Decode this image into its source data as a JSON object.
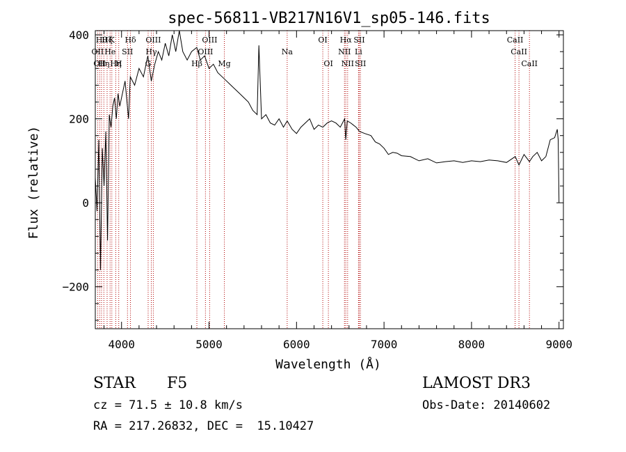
{
  "chart_data": {
    "type": "line",
    "title": "spec-56811-VB217N16V1_sp05-146.fits",
    "xlabel": "Wavelength (Å)",
    "ylabel": "Flux (relative)",
    "xlim": [
      3700,
      9050
    ],
    "ylim": [
      -300,
      410
    ],
    "xticks": [
      4000,
      5000,
      6000,
      7000,
      8000,
      9000
    ],
    "yticks": [
      -200,
      0,
      200,
      400
    ],
    "grid": false,
    "series": [
      {
        "name": "flux",
        "x": [
          3700,
          3720,
          3740,
          3760,
          3780,
          3800,
          3820,
          3840,
          3860,
          3880,
          3900,
          3920,
          3940,
          3960,
          3980,
          4000,
          4040,
          4080,
          4100,
          4150,
          4200,
          4250,
          4300,
          4340,
          4380,
          4420,
          4460,
          4500,
          4540,
          4580,
          4620,
          4660,
          4700,
          4750,
          4800,
          4860,
          4900,
          4950,
          5000,
          5050,
          5100,
          5150,
          5200,
          5250,
          5300,
          5350,
          5400,
          5450,
          5500,
          5550,
          5570,
          5600,
          5650,
          5700,
          5750,
          5800,
          5850,
          5893,
          5950,
          6000,
          6050,
          6100,
          6150,
          6200,
          6250,
          6300,
          6350,
          6400,
          6450,
          6500,
          6550,
          6563,
          6580,
          6620,
          6680,
          6720,
          6780,
          6850,
          6900,
          6950,
          7000,
          7050,
          7100,
          7150,
          7200,
          7300,
          7400,
          7500,
          7600,
          7700,
          7800,
          7900,
          8000,
          8100,
          8200,
          8300,
          8400,
          8500,
          8542,
          8600,
          8662,
          8700,
          8750,
          8800,
          8850,
          8900,
          8950,
          8980,
          8990,
          9000
        ],
        "y": [
          60,
          -20,
          150,
          -160,
          130,
          40,
          170,
          -90,
          210,
          180,
          230,
          250,
          200,
          260,
          230,
          250,
          290,
          200,
          300,
          280,
          320,
          300,
          350,
          290,
          330,
          360,
          340,
          380,
          350,
          400,
          360,
          410,
          360,
          340,
          360,
          370,
          340,
          350,
          320,
          330,
          310,
          300,
          290,
          280,
          270,
          260,
          250,
          240,
          220,
          210,
          375,
          200,
          210,
          190,
          185,
          200,
          180,
          195,
          175,
          165,
          180,
          190,
          200,
          175,
          185,
          180,
          190,
          195,
          190,
          180,
          200,
          150,
          195,
          190,
          180,
          170,
          165,
          160,
          145,
          140,
          130,
          115,
          120,
          118,
          112,
          110,
          100,
          105,
          95,
          98,
          100,
          96,
          100,
          98,
          102,
          100,
          96,
          110,
          90,
          115,
          98,
          110,
          120,
          100,
          110,
          150,
          155,
          175,
          150,
          0
        ]
      }
    ],
    "lines": [
      {
        "wl": 3727,
        "label": "OII",
        "row": 1
      },
      {
        "wl": 3750,
        "label": "OII",
        "row": 2
      },
      {
        "wl": 3771,
        "label": "Hθ",
        "row": 0
      },
      {
        "wl": 3798,
        "label": "Hη",
        "row": 2
      },
      {
        "wl": 3835,
        "label": "Hζ",
        "row": 0
      },
      {
        "wl": 3869,
        "label": "He",
        "row": 1
      },
      {
        "wl": 3889,
        "label": "K",
        "row": 0
      },
      {
        "wl": 3934,
        "label": "Hη",
        "row": 2
      },
      {
        "wl": 3968,
        "label": "H",
        "row": 2
      },
      {
        "wl": 4068,
        "label": "SII",
        "row": 1
      },
      {
        "wl": 4102,
        "label": "Hδ",
        "row": 0
      },
      {
        "wl": 4304,
        "label": "G",
        "row": 2
      },
      {
        "wl": 4340,
        "label": "Hγ",
        "row": 1
      },
      {
        "wl": 4363,
        "label": "OIII",
        "row": 0
      },
      {
        "wl": 4861,
        "label": "Hβ",
        "row": 2
      },
      {
        "wl": 4959,
        "label": "OIII",
        "row": 1
      },
      {
        "wl": 5007,
        "label": "OIII",
        "row": 0
      },
      {
        "wl": 5175,
        "label": "Mg",
        "row": 2
      },
      {
        "wl": 5893,
        "label": "Na",
        "row": 1
      },
      {
        "wl": 6300,
        "label": "OI",
        "row": 0
      },
      {
        "wl": 6364,
        "label": "OI",
        "row": 2
      },
      {
        "wl": 6548,
        "label": "NII",
        "row": 1
      },
      {
        "wl": 6563,
        "label": "Hα",
        "row": 0
      },
      {
        "wl": 6584,
        "label": "NII",
        "row": 2
      },
      {
        "wl": 6708,
        "label": "Li",
        "row": 1
      },
      {
        "wl": 6717,
        "label": "SII",
        "row": 0
      },
      {
        "wl": 6731,
        "label": "SII",
        "row": 2
      },
      {
        "wl": 8498,
        "label": "CaII",
        "row": 0
      },
      {
        "wl": 8542,
        "label": "CaII",
        "row": 1
      },
      {
        "wl": 8662,
        "label": "CaII",
        "row": 2
      }
    ],
    "line_color": "#b00000"
  },
  "info": {
    "class": "STAR",
    "subclass": "F5",
    "survey": "LAMOST DR3",
    "cz": "cz = 71.5 ± 10.8 km/s",
    "obs_date": "Obs-Date: 20140602",
    "coords": "RA = 217.26832, DEC =  15.10427"
  }
}
